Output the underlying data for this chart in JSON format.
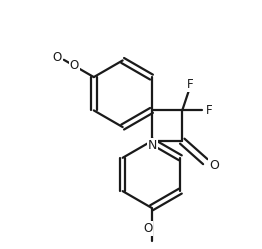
{
  "background_color": "#ffffff",
  "line_color": "#1a1a1a",
  "line_width": 1.6,
  "font_size": 8.5,
  "figsize": [
    2.62,
    2.49
  ],
  "dpi": 100,
  "xlim": [
    0,
    10
  ],
  "ylim": [
    0,
    9.5
  ]
}
